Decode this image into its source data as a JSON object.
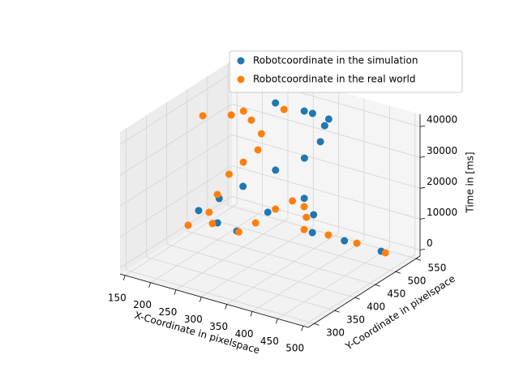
{
  "chart_data": {
    "type": "scatter3d",
    "x_label": "X-Coordinate in pixelspace",
    "y_label": "Y-Coordinate in pixelspace",
    "z_label": "Time in [ms]",
    "xlim": [
      140,
      510
    ],
    "ylim": [
      285,
      560
    ],
    "zlim": [
      -2000,
      44000
    ],
    "xticks": [
      150,
      200,
      250,
      300,
      350,
      400,
      450,
      500
    ],
    "yticks": [
      300,
      350,
      400,
      450,
      500,
      550
    ],
    "zticks": [
      0,
      10000,
      20000,
      30000,
      40000
    ],
    "grid": true,
    "legend": "upper right",
    "series": [
      {
        "name": "Robotcoordinate in the simulation",
        "color": "#1f77b4",
        "x": [
          460,
          394,
          343,
          323,
          295,
          285,
          293,
          259,
          217,
          239,
          265,
          301,
          341,
          354,
          352,
          329,
          276,
          339,
          396
        ],
        "y": [
          527,
          519,
          504,
          532,
          544,
          467,
          381,
          376,
          382,
          405,
          431,
          466,
          487,
          510,
          523,
          522,
          497,
          489,
          478
        ],
        "z": [
          0,
          1000,
          2500,
          5000,
          8000,
          9500,
          11000,
          12500,
          14000,
          17000,
          20000,
          24000,
          28000,
          32000,
          36000,
          39000,
          42000,
          43000,
          44000
        ]
      },
      {
        "name": "Robotcoordinate in the real world",
        "color": "#ff7f0e",
        "x": [
          469,
          413,
          360,
          322,
          312,
          306,
          291,
          292,
          301,
          304,
          257,
          234,
          248,
          241,
          240,
          260,
          280,
          270,
          247,
          222,
          198,
          250,
          308
        ],
        "y": [
          526,
          526,
          522,
          510,
          528,
          530,
          520,
          477,
          417,
          372,
          366,
          335,
          369,
          398,
          428,
          438,
          449,
          470,
          474,
          456,
          416,
          451,
          478
        ],
        "z": [
          0,
          500,
          1000,
          2000,
          4000,
          7000,
          9000,
          10000,
          11000,
          12000,
          13000,
          14000,
          16000,
          19000,
          23000,
          27000,
          31000,
          34000,
          37000,
          39000,
          41000,
          42000,
          43000
        ]
      }
    ]
  }
}
